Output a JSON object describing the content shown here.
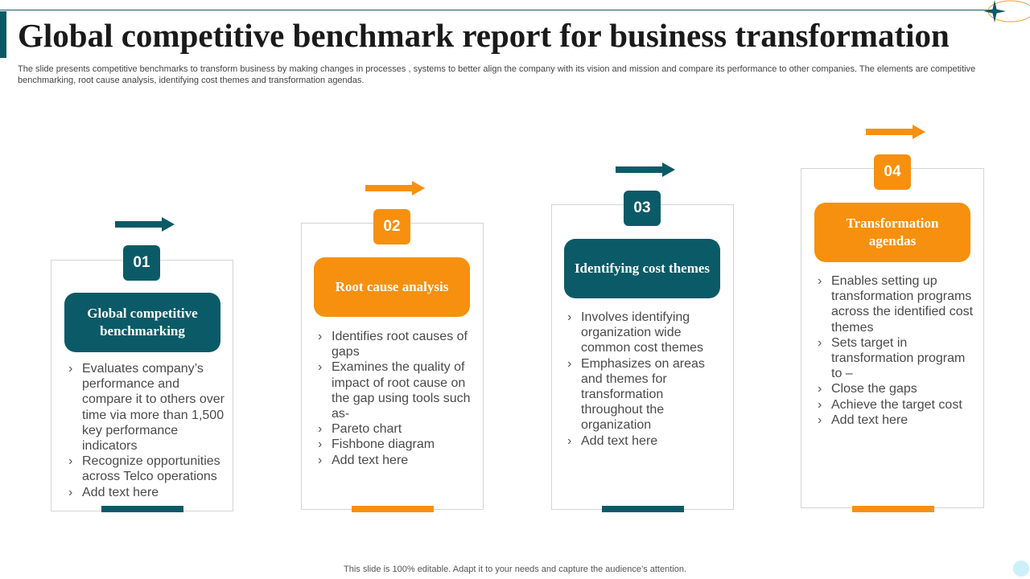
{
  "title": "Global competitive benchmark report for business transformation",
  "subtitle": "The slide presents competitive benchmarks to transform business by making changes in processes , systems to better align the company with its vision and mission and compare its performance to other companies. The elements are competitive benchmarking, root cause analysis, identifying cost themes and transformation agendas.",
  "colors": {
    "teal": "#0b5a67",
    "orange": "#f7900e"
  },
  "cards": [
    {
      "number": "01",
      "heading": "Global competitive benchmarking",
      "accent": "teal",
      "bullets": [
        "Evaluates company’s performance and compare it to others over time via more than 1,500 key performance indicators",
        "Recognize opportunities across Telco operations",
        "Add text here"
      ]
    },
    {
      "number": "02",
      "heading": "Root cause analysis",
      "accent": "orange",
      "bullets": [
        "Identifies root causes of gaps",
        "Examines the quality of impact of root cause on the gap using tools such as-",
        "Pareto chart",
        "Fishbone diagram",
        "Add text here"
      ]
    },
    {
      "number": "03",
      "heading": "Identifying cost themes",
      "accent": "teal",
      "bullets": [
        "Involves identifying organization wide common cost themes",
        "Emphasizes on areas and themes for transformation throughout the organization",
        "Add text here"
      ]
    },
    {
      "number": "04",
      "heading": "Transformation agendas",
      "accent": "orange",
      "bullets": [
        "Enables setting up transformation programs across the identified cost themes",
        "Sets target in transformation program to –",
        "Close the gaps",
        "Achieve the target cost",
        "Add text here"
      ]
    }
  ],
  "footer": "This slide is 100% editable. Adapt it to your needs and capture the audience’s attention."
}
